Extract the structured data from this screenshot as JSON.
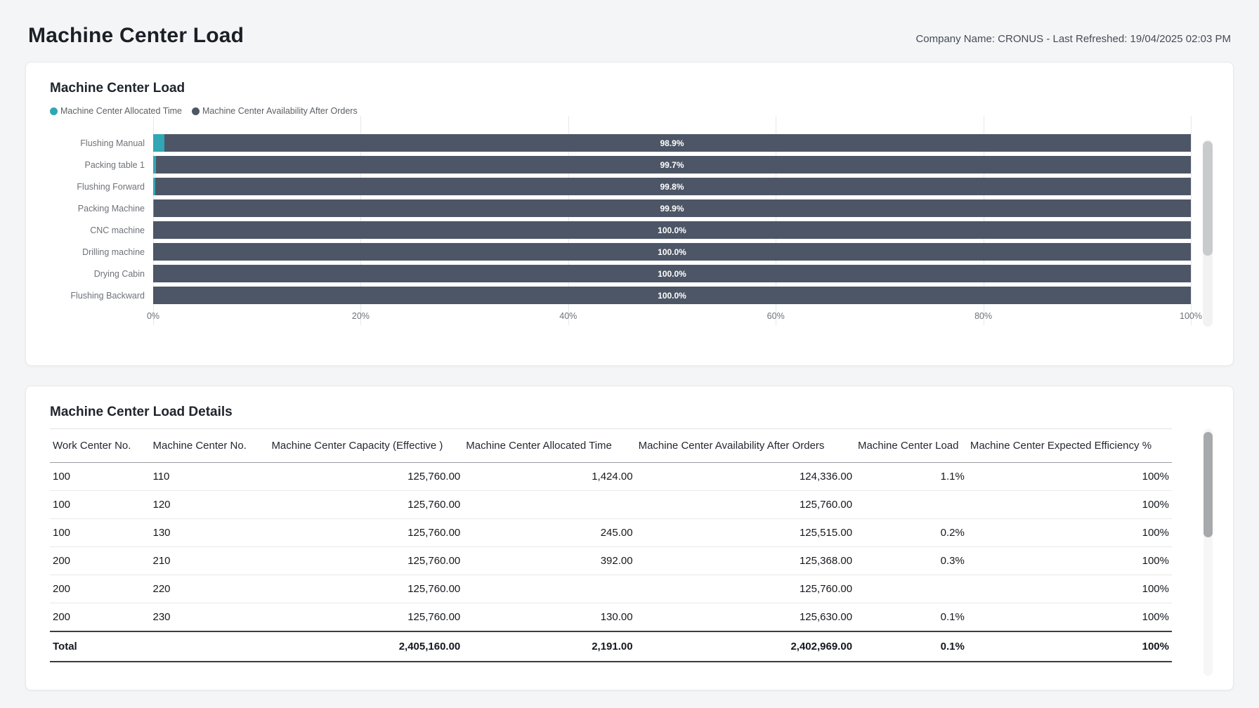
{
  "page": {
    "title": "Machine Center Load",
    "company_info": "Company Name: CRONUS - Last Refreshed: 19/04/2025 02:03 PM"
  },
  "colors": {
    "allocated_teal": "#31a6b4",
    "availability_slate": "#4d5666",
    "bar_label_white": "#ffffff"
  },
  "chart_card": {
    "title": "Machine Center Load",
    "legend": [
      {
        "label": "Machine Center Allocated Time",
        "color": "#31a6b4"
      },
      {
        "label": "Machine Center Availability After Orders",
        "color": "#4d5666"
      }
    ],
    "chart_data": {
      "type": "bar",
      "orientation": "horizontal",
      "stacked": true,
      "grid": true,
      "legend_position": "top-left",
      "xlim": [
        0,
        100
      ],
      "x_ticks": [
        "0%",
        "20%",
        "40%",
        "60%",
        "80%",
        "100%"
      ],
      "categories": [
        "Flushing Manual",
        "Packing table 1",
        "Flushing Forward",
        "Packing Machine",
        "CNC machine",
        "Drilling machine",
        "Drying Cabin",
        "Flushing Backward"
      ],
      "series": [
        {
          "name": "Machine Center Allocated Time",
          "color": "#31a6b4",
          "values": [
            1.1,
            0.3,
            0.2,
            0.1,
            0,
            0,
            0,
            0
          ]
        },
        {
          "name": "Machine Center Availability After Orders",
          "color": "#4d5666",
          "values": [
            98.9,
            99.7,
            99.8,
            99.9,
            100.0,
            100.0,
            100.0,
            100.0
          ]
        }
      ],
      "bar_labels": [
        "98.9%",
        "99.7%",
        "99.8%",
        "99.9%",
        "100.0%",
        "100.0%",
        "100.0%",
        "100.0%"
      ]
    }
  },
  "table_card": {
    "title": "Machine Center Load Details",
    "columns": [
      "Work Center No.",
      "Machine Center No.",
      "Machine Center Capacity (Effective )",
      "Machine Center Allocated Time",
      "Machine Center Availability After Orders",
      "Machine Center Load",
      "Machine Center Expected Efficiency %"
    ],
    "rows": [
      [
        "100",
        "110",
        "125,760.00",
        "1,424.00",
        "124,336.00",
        "1.1%",
        "100%"
      ],
      [
        "100",
        "120",
        "125,760.00",
        "",
        "125,760.00",
        "",
        "100%"
      ],
      [
        "100",
        "130",
        "125,760.00",
        "245.00",
        "125,515.00",
        "0.2%",
        "100%"
      ],
      [
        "200",
        "210",
        "125,760.00",
        "392.00",
        "125,368.00",
        "0.3%",
        "100%"
      ],
      [
        "200",
        "220",
        "125,760.00",
        "",
        "125,760.00",
        "",
        "100%"
      ],
      [
        "200",
        "230",
        "125,760.00",
        "130.00",
        "125,630.00",
        "0.1%",
        "100%"
      ]
    ],
    "total_row": [
      "Total",
      "",
      "2,405,160.00",
      "2,191.00",
      "2,402,969.00",
      "0.1%",
      "100%"
    ]
  }
}
